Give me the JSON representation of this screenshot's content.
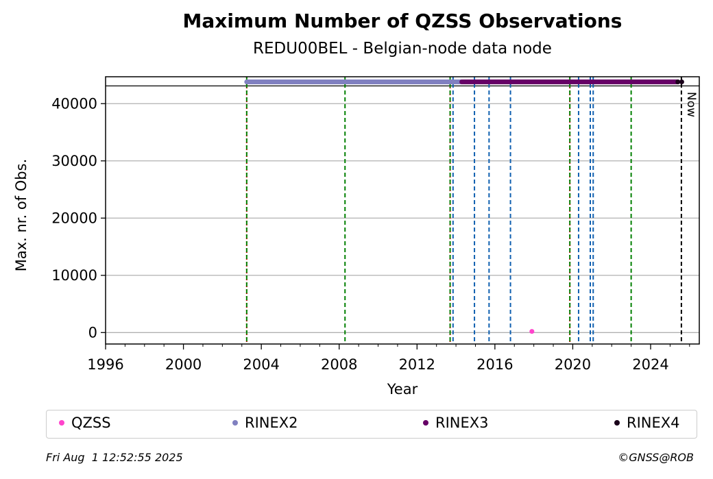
{
  "chart_data": {
    "type": "scatter",
    "title": "Maximum Number of QZSS Observations",
    "subtitle": "REDU00BEL - Belgian-node data node",
    "xlabel": "Year",
    "ylabel": "Max. nr. of Obs.",
    "xlim": [
      1996,
      2026.5
    ],
    "ylim": [
      -2000,
      44700
    ],
    "x_ticks": [
      1996,
      2000,
      2004,
      2008,
      2012,
      2016,
      2020,
      2024
    ],
    "x_tick_labels": [
      "1996",
      "2000",
      "2004",
      "2008",
      "2012",
      "2016",
      "2020",
      "2024"
    ],
    "y_ticks": [
      0,
      10000,
      20000,
      30000,
      40000
    ],
    "y_tick_labels": [
      "0",
      "10000",
      "20000",
      "30000",
      "40000"
    ],
    "grid": "horizontal",
    "legend": "bottom",
    "series": [
      {
        "name": "QZSS",
        "color": "#ff44cc",
        "x": [
          2017.9
        ],
        "y": [
          200
        ]
      },
      {
        "name": "RINEX2",
        "color": "#8080c0",
        "x_range": [
          2003.25,
          2014.3
        ],
        "y": 43800
      },
      {
        "name": "RINEX3",
        "color": "#660066",
        "x_range": [
          2014.3,
          2025.4
        ],
        "y": 43800
      },
      {
        "name": "RINEX4",
        "color": "#1a001a",
        "x": [
          2025.4,
          2025.6
        ],
        "y": [
          43800,
          43800
        ]
      }
    ],
    "reference_line_y": 43100,
    "vlines": [
      {
        "x": 2003.25,
        "color": "#cc0000",
        "style": "dotted"
      },
      {
        "x": 2003.25,
        "color": "#008000",
        "style": "dashed"
      },
      {
        "x": 2008.3,
        "color": "#008000",
        "style": "dashed"
      },
      {
        "x": 2013.7,
        "color": "#cc0000",
        "style": "dotted"
      },
      {
        "x": 2013.7,
        "color": "#008000",
        "style": "dashed"
      },
      {
        "x": 2013.85,
        "color": "#1060b0",
        "style": "dashed"
      },
      {
        "x": 2014.95,
        "color": "#1060b0",
        "style": "dashed"
      },
      {
        "x": 2015.7,
        "color": "#1060b0",
        "style": "dashed"
      },
      {
        "x": 2016.8,
        "color": "#1060b0",
        "style": "dashed"
      },
      {
        "x": 2019.85,
        "color": "#cc0000",
        "style": "dotted"
      },
      {
        "x": 2019.85,
        "color": "#008000",
        "style": "dashed"
      },
      {
        "x": 2020.3,
        "color": "#1060b0",
        "style": "dashed"
      },
      {
        "x": 2020.9,
        "color": "#1060b0",
        "style": "dashed"
      },
      {
        "x": 2021.05,
        "color": "#1060b0",
        "style": "dashed"
      },
      {
        "x": 2023.0,
        "color": "#008000",
        "style": "dashed"
      },
      {
        "x": 2025.58,
        "color": "#000000",
        "style": "dashed"
      }
    ],
    "now_label": "Now"
  },
  "legend_items": [
    {
      "label": "QZSS",
      "color": "#ff44cc"
    },
    {
      "label": "RINEX2",
      "color": "#8080c0"
    },
    {
      "label": "RINEX3",
      "color": "#660066"
    },
    {
      "label": "RINEX4",
      "color": "#1a001a"
    }
  ],
  "footer": {
    "timestamp": "Fri Aug  1 12:52:55 2025",
    "credit": "©GNSS@ROB"
  }
}
